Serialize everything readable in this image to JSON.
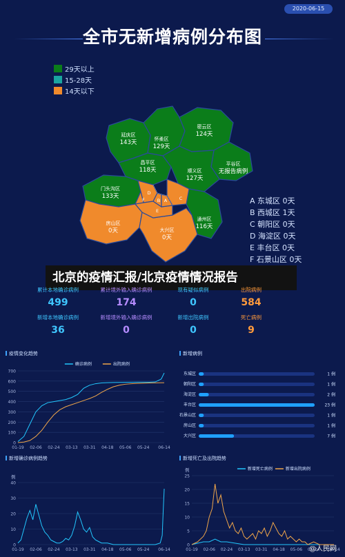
{
  "header": {
    "date": "2020-06-15",
    "title": "全市无新增病例分布图"
  },
  "legend": [
    {
      "label": "29天以上",
      "color": "#0b7d1a"
    },
    {
      "label": "15-28天",
      "color": "#1aa5a0"
    },
    {
      "label": "14天以下",
      "color": "#f08a2c"
    }
  ],
  "districts": [
    {
      "name": "延庆区",
      "days": "143天",
      "color": "#0b7d1a"
    },
    {
      "name": "怀柔区",
      "days": "129天",
      "color": "#0b7d1a"
    },
    {
      "name": "密云区",
      "days": "124天",
      "color": "#0b7d1a"
    },
    {
      "name": "昌平区",
      "days": "118天",
      "color": "#0b7d1a"
    },
    {
      "name": "平谷区",
      "days": "无报告病例",
      "color": "#0b7d1a"
    },
    {
      "name": "顺义区",
      "days": "127天",
      "color": "#0b7d1a"
    },
    {
      "name": "门头沟区",
      "days": "133天",
      "color": "#0b7d1a"
    },
    {
      "name": "通州区",
      "days": "116天",
      "color": "#0b7d1a"
    },
    {
      "name": "房山区",
      "days": "0天",
      "color": "#f08a2c"
    },
    {
      "name": "大兴区",
      "days": "0天",
      "color": "#f08a2c"
    }
  ],
  "map_codes": [
    "A",
    "B",
    "C",
    "D",
    "E",
    "F"
  ],
  "city_list": [
    "A 东城区 0天",
    "B 西城区 1天",
    "C 朝阳区 0天",
    "D 海淀区 0天",
    "E 丰台区 0天",
    "F 石景山区 0天"
  ],
  "headline": "北京的疫情汇报/北京疫情情况报告",
  "stats_row1": [
    {
      "label": "累计本地确诊病例",
      "value": "499",
      "color": "#3fc6ff"
    },
    {
      "label": "累计境外输入确诊病例",
      "value": "174",
      "color": "#b58cff"
    },
    {
      "label": "现有疑似病例",
      "value": "0",
      "color": "#3fc6ff"
    },
    {
      "label": "出院病例",
      "value": "584",
      "color": "#ff9a3c"
    }
  ],
  "stats_row2": [
    {
      "label": "新增本地确诊病例",
      "value": "36",
      "color": "#3fc6ff"
    },
    {
      "label": "新增境外输入确诊病例",
      "value": "0",
      "color": "#b58cff"
    },
    {
      "label": "新增出院病例",
      "value": "0",
      "color": "#3fc6ff"
    },
    {
      "label": "死亡病例",
      "value": "9",
      "color": "#ff9a3c"
    }
  ],
  "panels": {
    "trend_title": "疫情变化趋势",
    "new_cases_title": "新增病例",
    "new_confirmed_title": "新增确诊病例趋势",
    "new_death_title": "新增死亡及出院趋势",
    "unit": "例"
  },
  "chart_data": [
    {
      "type": "line",
      "title": "疫情变化趋势",
      "ylabel": "",
      "ylim": [
        0,
        700
      ],
      "yticks": [
        0,
        100,
        200,
        300,
        400,
        500,
        600,
        700
      ],
      "x_ticks": [
        "01-19",
        "02-06",
        "02-24",
        "03-13",
        "03-31",
        "04-18",
        "05-06",
        "05-24",
        "06-14"
      ],
      "series": [
        {
          "name": "确诊病例",
          "color": "#22c8ff",
          "x": [
            "01-19",
            "01-25",
            "01-31",
            "02-06",
            "02-12",
            "02-18",
            "02-24",
            "03-01",
            "03-07",
            "03-13",
            "03-19",
            "03-25",
            "03-31",
            "04-06",
            "04-12",
            "04-18",
            "04-24",
            "04-30",
            "05-06",
            "05-12",
            "05-18",
            "05-24",
            "05-30",
            "06-05",
            "06-11",
            "06-14"
          ],
          "values": [
            10,
            60,
            180,
            300,
            360,
            390,
            400,
            410,
            420,
            440,
            470,
            530,
            560,
            575,
            582,
            585,
            586,
            587,
            588,
            589,
            590,
            590,
            590,
            592,
            620,
            680
          ]
        },
        {
          "name": "出院病例",
          "color": "#f0a64a",
          "x": [
            "01-19",
            "01-25",
            "01-31",
            "02-06",
            "02-12",
            "02-18",
            "02-24",
            "03-01",
            "03-07",
            "03-13",
            "03-19",
            "03-25",
            "03-31",
            "04-06",
            "04-12",
            "04-18",
            "04-24",
            "04-30",
            "05-06",
            "05-12",
            "05-18",
            "05-24",
            "05-30",
            "06-05",
            "06-11",
            "06-14"
          ],
          "values": [
            0,
            5,
            20,
            60,
            120,
            200,
            270,
            320,
            350,
            370,
            390,
            410,
            430,
            455,
            490,
            520,
            545,
            560,
            570,
            575,
            578,
            580,
            582,
            583,
            584,
            584
          ]
        }
      ]
    },
    {
      "type": "bar",
      "title": "新增病例",
      "categories": [
        "东城区",
        "朝阳区",
        "海淀区",
        "丰台区",
        "石景山区",
        "房山区",
        "大兴区"
      ],
      "values": [
        1,
        1,
        2,
        23,
        1,
        1,
        7
      ],
      "value_labels": [
        "1 例",
        "1 例",
        "2 例",
        "23 例",
        "1 例",
        "1 例",
        "7 例"
      ],
      "xlim": [
        0,
        23
      ]
    },
    {
      "type": "line",
      "title": "新增确诊病例趋势",
      "ylabel": "例",
      "ylim": [
        0,
        40
      ],
      "yticks": [
        0,
        10,
        20,
        30,
        40
      ],
      "x_ticks": [
        "01-19",
        "02-06",
        "02-24",
        "03-13",
        "03-31",
        "04-18",
        "05-06",
        "05-24",
        "06-14"
      ],
      "series": [
        {
          "name": "新增确诊病例",
          "color": "#22c8ff",
          "x": [
            "01-19",
            "01-22",
            "01-25",
            "01-28",
            "01-31",
            "02-03",
            "02-06",
            "02-09",
            "02-12",
            "02-15",
            "02-18",
            "02-21",
            "02-24",
            "02-27",
            "03-01",
            "03-04",
            "03-07",
            "03-10",
            "03-13",
            "03-16",
            "03-19",
            "03-22",
            "03-25",
            "03-28",
            "03-31",
            "04-03",
            "04-06",
            "04-09",
            "04-12",
            "04-18",
            "04-24",
            "04-30",
            "05-06",
            "05-12",
            "05-18",
            "05-24",
            "05-30",
            "06-05",
            "06-10",
            "06-12",
            "06-13",
            "06-14"
          ],
          "values": [
            1,
            3,
            10,
            17,
            22,
            16,
            26,
            19,
            12,
            8,
            6,
            3,
            2,
            1,
            1,
            2,
            4,
            3,
            6,
            12,
            21,
            16,
            10,
            8,
            11,
            5,
            3,
            2,
            1,
            1,
            0,
            0,
            0,
            0,
            0,
            0,
            0,
            0,
            1,
            6,
            22,
            36
          ]
        }
      ]
    },
    {
      "type": "line",
      "title": "新增死亡及出院趋势",
      "ylabel": "例",
      "ylim": [
        0,
        25
      ],
      "yticks": [
        0,
        5,
        10,
        15,
        20,
        25
      ],
      "x_ticks": [
        "01-19",
        "02-06",
        "02-24",
        "03-13",
        "03-31",
        "04-18",
        "05-06",
        "05-24",
        "06-14"
      ],
      "series": [
        {
          "name": "新增死亡病例",
          "color": "#22c8ff",
          "x": [
            "01-19",
            "01-31",
            "02-06",
            "02-12",
            "02-18",
            "02-24",
            "03-13",
            "03-31",
            "04-18",
            "05-06",
            "05-24",
            "06-14"
          ],
          "values": [
            0,
            1,
            1,
            2,
            1,
            1,
            0,
            0,
            0,
            0,
            0,
            0
          ]
        },
        {
          "name": "新增出院病例",
          "color": "#f0a64a",
          "x": [
            "01-19",
            "01-25",
            "01-31",
            "02-03",
            "02-06",
            "02-09",
            "02-12",
            "02-15",
            "02-18",
            "02-21",
            "02-24",
            "02-27",
            "03-01",
            "03-04",
            "03-07",
            "03-10",
            "03-13",
            "03-16",
            "03-19",
            "03-22",
            "03-25",
            "03-28",
            "03-31",
            "04-03",
            "04-06",
            "04-09",
            "04-12",
            "04-15",
            "04-18",
            "04-21",
            "04-24",
            "04-27",
            "04-30",
            "05-03",
            "05-06",
            "05-09",
            "05-12",
            "05-15",
            "05-18",
            "05-24",
            "05-30",
            "06-05",
            "06-14"
          ],
          "values": [
            0,
            1,
            3,
            5,
            10,
            13,
            22,
            15,
            18,
            12,
            9,
            6,
            8,
            5,
            4,
            6,
            3,
            2,
            3,
            4,
            2,
            5,
            4,
            6,
            3,
            5,
            8,
            6,
            4,
            3,
            5,
            2,
            3,
            2,
            1,
            2,
            1,
            1,
            0,
            1,
            0,
            0,
            0
          ]
        }
      ]
    }
  ],
  "watermark": "@人民网"
}
